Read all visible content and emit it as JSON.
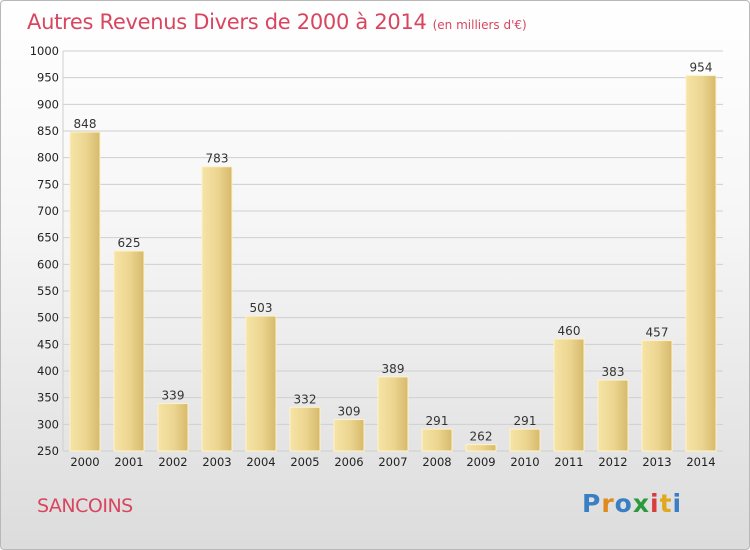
{
  "chart_data": {
    "type": "bar",
    "title": "Autres Revenus Divers de 2000 à 2014",
    "subtitle": "(en milliers d'€)",
    "categories": [
      "2000",
      "2001",
      "2002",
      "2003",
      "2004",
      "2005",
      "2006",
      "2007",
      "2008",
      "2009",
      "2010",
      "2011",
      "2012",
      "2013",
      "2014"
    ],
    "values": [
      848,
      625,
      339,
      783,
      503,
      332,
      309,
      389,
      291,
      262,
      291,
      460,
      383,
      457,
      954
    ],
    "ylim": [
      250,
      1000
    ],
    "yticks": [
      250,
      300,
      350,
      400,
      450,
      500,
      550,
      600,
      650,
      700,
      750,
      800,
      850,
      900,
      950,
      1000
    ],
    "grid": true,
    "bar_color": "#e8cf8a"
  },
  "footer": {
    "place": "SANCOINS"
  },
  "logo": {
    "text": "Proxiti",
    "colors": [
      "#3a7fc4",
      "#e08a1e",
      "#3a7fc4",
      "#2b9a3c",
      "#d93c3c",
      "#e0a81e",
      "#3a7fc4"
    ]
  }
}
